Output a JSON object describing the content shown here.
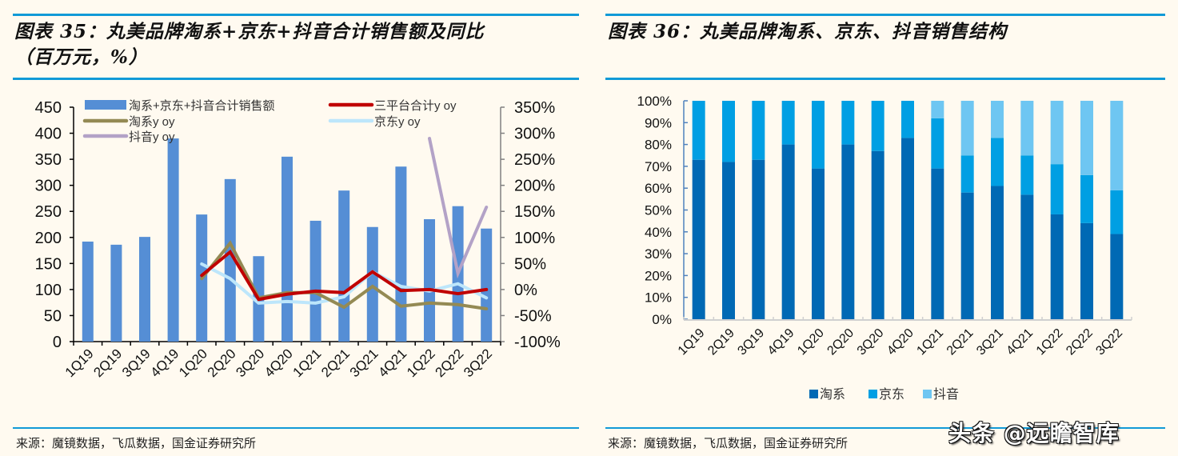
{
  "left": {
    "title_line1": "图表 35：丸美品牌淘系+京东+抖音合计销售额及同比",
    "title_line2": "（百万元，%）",
    "source": "来源：魔镜数据，飞瓜数据，国金证券研究所"
  },
  "right": {
    "title_line1": "图表 36：丸美品牌淘系、京东、抖音销售结构",
    "source": "来源：魔镜数据，飞瓜数据，国金证券研究所"
  },
  "watermark": "头条 @远瞻智库",
  "colors": {
    "bar": "#558ed5",
    "total_yoy": "#c00000",
    "taoxi_yoy": "#948a54",
    "jd_yoy": "#bde6fb",
    "douyin_yoy": "#b3a2c7",
    "share_taoxi": "#0069b4",
    "share_jd": "#009fe3",
    "share_douyin": "#6ec6f2",
    "rule": "#119ad7"
  },
  "chart_data": [
    {
      "type": "bar+line",
      "title": "丸美品牌淘系+京东+抖音合计销售额及同比（百万元，%）",
      "categories": [
        "1Q19",
        "2Q19",
        "3Q19",
        "4Q19",
        "1Q20",
        "2Q20",
        "3Q20",
        "4Q20",
        "1Q21",
        "2Q21",
        "3Q21",
        "4Q21",
        "1Q22",
        "2Q22",
        "3Q22"
      ],
      "y_left": {
        "min": 0,
        "max": 450,
        "step": 50,
        "ticks": [
          "0",
          "50",
          "100",
          "150",
          "200",
          "250",
          "300",
          "350",
          "400",
          "450"
        ]
      },
      "y_right": {
        "min": -100,
        "max": 350,
        "step": 50,
        "ticks": [
          "-100%",
          "-50%",
          "0%",
          "50%",
          "100%",
          "150%",
          "200%",
          "250%",
          "300%",
          "350%"
        ]
      },
      "legend": [
        "淘系+京东+抖音合计销售额",
        "三平台合计y oy",
        "淘系y oy",
        "京东y oy",
        "抖音y oy"
      ],
      "legend_position": "top",
      "series": [
        {
          "name": "淘系+京东+抖音合计销售额",
          "kind": "bar",
          "axis": "left",
          "color_key": "bar",
          "values": [
            192,
            186,
            201,
            390,
            244,
            312,
            164,
            355,
            232,
            290,
            220,
            336,
            235,
            260,
            217
          ]
        },
        {
          "name": "三平台合计y oy",
          "kind": "line",
          "axis": "right",
          "color_key": "total_yoy",
          "values": [
            null,
            null,
            null,
            null,
            27,
            72,
            -19,
            -9,
            -3,
            -6,
            34,
            -2,
            0,
            -8,
            0
          ]
        },
        {
          "name": "淘系y oy",
          "kind": "line",
          "axis": "right",
          "color_key": "taoxi_yoy",
          "values": [
            null,
            null,
            null,
            null,
            21,
            89,
            -16,
            -6,
            -6,
            -34,
            6,
            -32,
            -26,
            -29,
            -37
          ]
        },
        {
          "name": "京东y oy",
          "kind": "line",
          "axis": "right",
          "color_key": "jd_yoy",
          "values": [
            null,
            null,
            null,
            null,
            49,
            21,
            -26,
            -23,
            -26,
            -14,
            34,
            6,
            -3,
            11,
            -16
          ]
        },
        {
          "name": "抖音y oy",
          "kind": "line",
          "axis": "right",
          "color_key": "douyin_yoy",
          "values": [
            null,
            null,
            null,
            null,
            null,
            null,
            null,
            null,
            null,
            null,
            null,
            null,
            290,
            31,
            158
          ]
        }
      ]
    },
    {
      "type": "stacked-bar",
      "title": "丸美品牌淘系、京东、抖音销售结构",
      "categories": [
        "1Q19",
        "2Q19",
        "3Q19",
        "4Q19",
        "1Q20",
        "2Q20",
        "3Q20",
        "4Q20",
        "1Q21",
        "2Q21",
        "3Q21",
        "4Q21",
        "1Q22",
        "2Q22",
        "3Q22"
      ],
      "y": {
        "min": 0,
        "max": 100,
        "step": 10,
        "ticks": [
          "0%",
          "10%",
          "20%",
          "30%",
          "40%",
          "50%",
          "60%",
          "70%",
          "80%",
          "90%",
          "100%"
        ]
      },
      "legend": [
        "淘系",
        "京东",
        "抖音"
      ],
      "legend_position": "bottom",
      "series": [
        {
          "name": "淘系",
          "color_key": "share_taoxi",
          "values": [
            73,
            72,
            73,
            80,
            69,
            80,
            77,
            83,
            69,
            58,
            61,
            57,
            48,
            44,
            39
          ]
        },
        {
          "name": "京东",
          "color_key": "share_jd",
          "values": [
            27,
            28,
            27,
            20,
            31,
            20,
            23,
            17,
            23,
            17,
            22,
            18,
            23,
            22,
            20
          ]
        },
        {
          "name": "抖音",
          "color_key": "share_douyin",
          "values": [
            0,
            0,
            0,
            0,
            0,
            0,
            0,
            0,
            8,
            25,
            17,
            25,
            29,
            34,
            41
          ]
        }
      ]
    }
  ]
}
